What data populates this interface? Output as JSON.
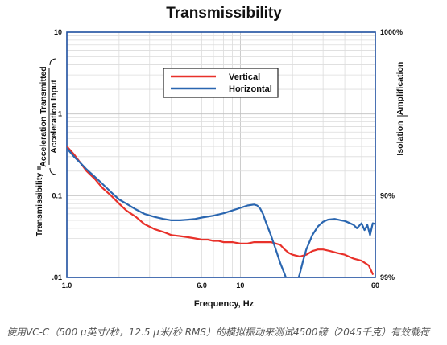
{
  "chart_data": {
    "type": "line",
    "title": "Transmissibility",
    "xlabel": "Frequency, Hz",
    "ylabel": {
      "prefix": "Transmissibility =",
      "numerator": "Acceleration Transmitted",
      "denominator": "Acceleration Input"
    },
    "right_labels": {
      "upper": "Amplification",
      "lower": "Isolation"
    },
    "x_scale": "log",
    "y_scale": "log",
    "xlim": [
      1,
      60
    ],
    "ylim": [
      0.01,
      10
    ],
    "x_ticks": [
      {
        "value": 1,
        "label": "1.0"
      },
      {
        "value": 6,
        "label": "6.0"
      },
      {
        "value": 10,
        "label": "10"
      },
      {
        "value": 60,
        "label": "60"
      }
    ],
    "y_ticks": [
      {
        "value": 10,
        "label": "10"
      },
      {
        "value": 1,
        "label": "1"
      },
      {
        "value": 0.1,
        "label": "0.1"
      },
      {
        "value": 0.01,
        "label": ".01"
      }
    ],
    "right_ticks": [
      {
        "value": 10,
        "label": "1000%"
      },
      {
        "value": 0.1,
        "label": "90%"
      },
      {
        "value": 0.01,
        "label": "99%"
      }
    ],
    "grid": true,
    "legend_position": "top-center",
    "series": [
      {
        "name": "Vertical",
        "color": "#e8312a",
        "x": [
          1.0,
          1.1,
          1.2,
          1.3,
          1.45,
          1.6,
          1.8,
          2.0,
          2.2,
          2.5,
          2.8,
          3.2,
          3.6,
          4.0,
          4.5,
          5.0,
          5.5,
          6.0,
          6.5,
          7.0,
          7.5,
          8.0,
          8.5,
          9.0,
          10.0,
          11.0,
          12.0,
          13.0,
          14.0,
          15.0,
          16.0,
          17.0,
          18.0,
          19.0,
          20.0,
          22.0,
          24.0,
          26.0,
          28.0,
          30.0,
          33.0,
          36.0,
          40.0,
          45.0,
          50.0,
          55.0,
          58.0
        ],
        "y": [
          0.4,
          0.32,
          0.25,
          0.2,
          0.16,
          0.125,
          0.1,
          0.08,
          0.066,
          0.055,
          0.045,
          0.039,
          0.036,
          0.033,
          0.032,
          0.031,
          0.03,
          0.029,
          0.029,
          0.028,
          0.028,
          0.027,
          0.027,
          0.027,
          0.026,
          0.026,
          0.027,
          0.027,
          0.027,
          0.027,
          0.026,
          0.025,
          0.022,
          0.02,
          0.019,
          0.018,
          0.019,
          0.021,
          0.022,
          0.022,
          0.021,
          0.02,
          0.019,
          0.017,
          0.016,
          0.014,
          0.011
        ]
      },
      {
        "name": "Horizontal",
        "color": "#2a66b0",
        "x": [
          1.0,
          1.1,
          1.2,
          1.3,
          1.45,
          1.6,
          1.8,
          2.0,
          2.2,
          2.5,
          2.8,
          3.2,
          3.6,
          4.0,
          4.5,
          5.0,
          5.5,
          6.0,
          7.0,
          8.0,
          9.0,
          10.0,
          11.0,
          12.0,
          12.5,
          13.0,
          13.5,
          14.0,
          15.0,
          16.0,
          17.0,
          18.0,
          19.0,
          20.0,
          21.0,
          22.0,
          23.0,
          24.0,
          26.0,
          28.0,
          30.0,
          32.0,
          35.0,
          38.0,
          40.0,
          42.0,
          45.0,
          47.0,
          50.0,
          52.0,
          54.0,
          56.0,
          58.0,
          60.0
        ],
        "y": [
          0.38,
          0.3,
          0.25,
          0.21,
          0.17,
          0.14,
          0.11,
          0.09,
          0.08,
          0.068,
          0.06,
          0.055,
          0.052,
          0.05,
          0.05,
          0.051,
          0.052,
          0.054,
          0.057,
          0.061,
          0.066,
          0.071,
          0.076,
          0.078,
          0.076,
          0.07,
          0.06,
          0.048,
          0.033,
          0.022,
          0.015,
          0.011,
          0.008,
          0.007,
          0.008,
          0.011,
          0.016,
          0.022,
          0.033,
          0.042,
          0.048,
          0.051,
          0.052,
          0.05,
          0.049,
          0.047,
          0.044,
          0.04,
          0.046,
          0.038,
          0.044,
          0.033,
          0.046,
          0.045
        ]
      }
    ]
  },
  "caption": "使用VC-C（500 μ英寸/秒，12.5 μ米/秒 RMS）的模拟振动来测试4500磅（2045千克）有效载荷"
}
